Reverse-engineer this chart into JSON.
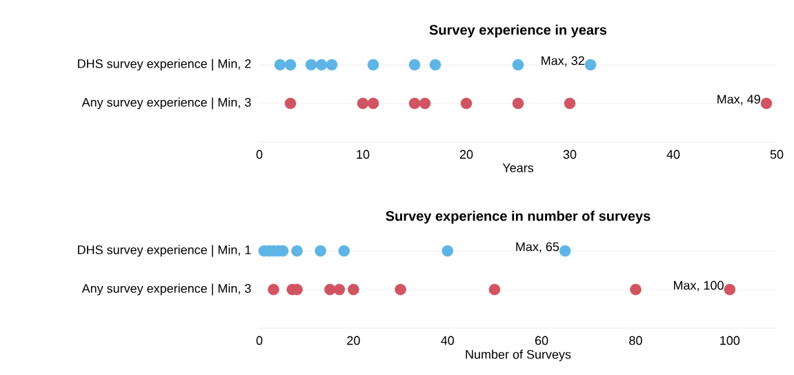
{
  "chart_data": [
    {
      "type": "scatter",
      "title": "Survey experience in years",
      "xlabel": "Years",
      "orientation": "horizontal",
      "grid": "y",
      "categories": [
        "DHS survey experience | Min, 2",
        "Any survey experience | Min, 3"
      ],
      "series": [
        {
          "color": "#5db4e5",
          "x": [
            "DHS survey experience | Min, 2",
            "DHS survey experience | Min, 2",
            "DHS survey experience | Min, 2",
            "DHS survey experience | Min, 2",
            "DHS survey experience | Min, 2",
            "DHS survey experience | Min, 2",
            "DHS survey experience | Min, 2",
            "DHS survey experience | Min, 2",
            "DHS survey experience | Min, 2",
            "DHS survey experience | Min, 2"
          ],
          "values": [
            2,
            3,
            5,
            6,
            7,
            11,
            15,
            17,
            25,
            32
          ]
        },
        {
          "color": "#d05462",
          "x": [
            "Any survey experience | Min, 3",
            "Any survey experience | Min, 3",
            "Any survey experience | Min, 3",
            "Any survey experience | Min, 3",
            "Any survey experience | Min, 3",
            "Any survey experience | Min, 3",
            "Any survey experience | Min, 3",
            "Any survey experience | Min, 3",
            "Any survey experience | Min, 3"
          ],
          "values": [
            3,
            10,
            11,
            15,
            16,
            20,
            25,
            30,
            49
          ]
        }
      ],
      "xlim": [
        0,
        50
      ],
      "xticks": [
        0,
        10,
        20,
        30,
        40,
        50
      ],
      "annotations": [
        {
          "text": "Max, 32",
          "x": 32,
          "y": "DHS survey experience | Min, 2"
        },
        {
          "text": "Max, 49",
          "x": 49,
          "y": "Any survey experience | Min, 3"
        }
      ]
    },
    {
      "type": "scatter",
      "title": "Survey experience in number of surveys",
      "xlabel": "Number of Surveys",
      "orientation": "horizontal",
      "grid": "y",
      "categories": [
        "DHS survey experience | Min, 1",
        "Any survey experience | Min, 3"
      ],
      "series": [
        {
          "color": "#5db4e5",
          "x": [
            "DHS survey experience | Min, 1",
            "DHS survey experience | Min, 1",
            "DHS survey experience | Min, 1",
            "DHS survey experience | Min, 1",
            "DHS survey experience | Min, 1",
            "DHS survey experience | Min, 1",
            "DHS survey experience | Min, 1",
            "DHS survey experience | Min, 1",
            "DHS survey experience | Min, 1",
            "DHS survey experience | Min, 1"
          ],
          "values": [
            1,
            2,
            3,
            4,
            5,
            8,
            13,
            18,
            40,
            65
          ]
        },
        {
          "color": "#d05462",
          "x": [
            "Any survey experience | Min, 3",
            "Any survey experience | Min, 3",
            "Any survey experience | Min, 3",
            "Any survey experience | Min, 3",
            "Any survey experience | Min, 3",
            "Any survey experience | Min, 3",
            "Any survey experience | Min, 3",
            "Any survey experience | Min, 3",
            "Any survey experience | Min, 3",
            "Any survey experience | Min, 3"
          ],
          "values": [
            3,
            7,
            8,
            15,
            17,
            20,
            30,
            50,
            80,
            100
          ]
        }
      ],
      "xlim": [
        0,
        110
      ],
      "xticks": [
        0,
        20,
        40,
        60,
        80,
        100
      ],
      "annotations": [
        {
          "text": "Max, 65",
          "x": 65,
          "y": "DHS survey experience | Min, 1"
        },
        {
          "text": "Max, 100",
          "x": 100,
          "y": "Any survey experience | Min, 3"
        }
      ]
    }
  ]
}
